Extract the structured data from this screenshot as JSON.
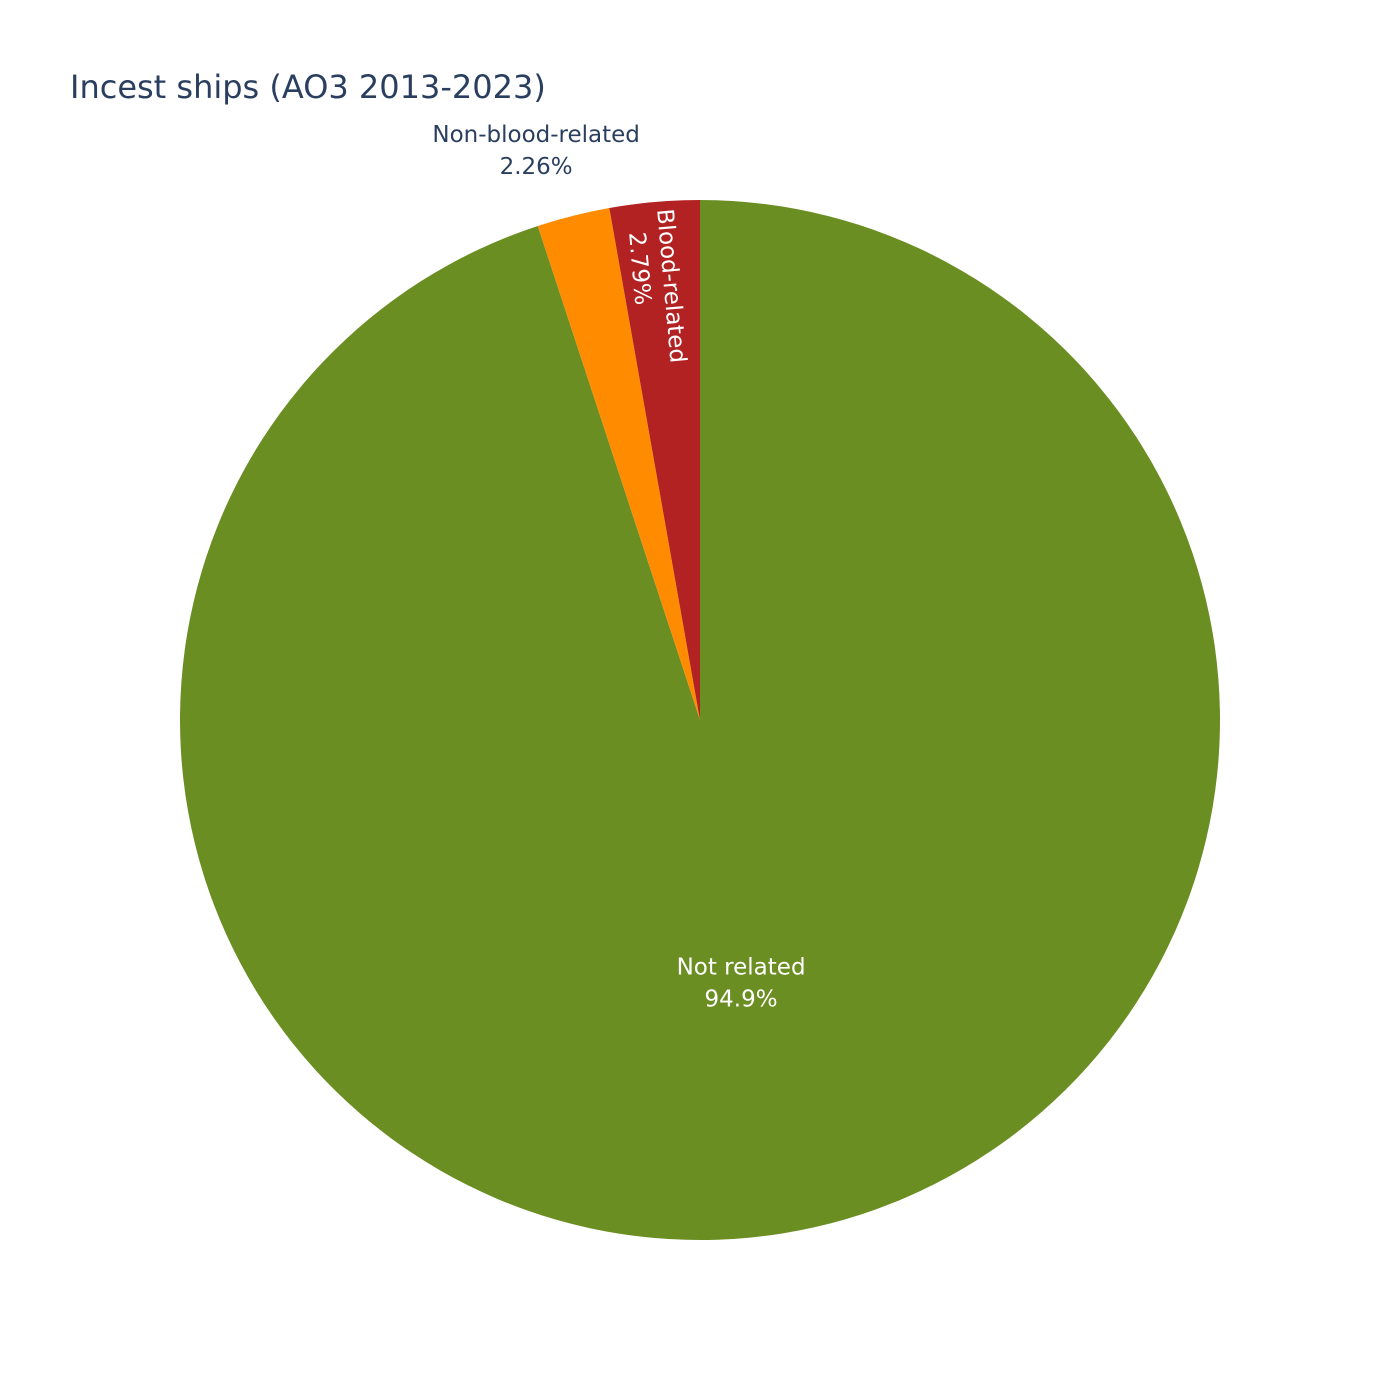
{
  "chart_data": {
    "type": "pie",
    "title": "Incest ships (AO3 2013-2023)",
    "direction": "clockwise",
    "start_angle_deg": 90,
    "slices": [
      {
        "label": "Not related",
        "value": 94.95,
        "percent_text": "94.9%",
        "color": "#6b8e23",
        "label_color": "#ffffff",
        "label_position": "inside"
      },
      {
        "label": "Non-blood-related",
        "value": 2.26,
        "percent_text": "2.26%",
        "color": "#ff8c00",
        "label_color": "#2a3f5f",
        "label_position": "outside"
      },
      {
        "label": "Blood-related",
        "value": 2.79,
        "percent_text": "2.79%",
        "color": "#b22222",
        "label_color": "#ffffff",
        "label_position": "inside-radial"
      }
    ]
  }
}
